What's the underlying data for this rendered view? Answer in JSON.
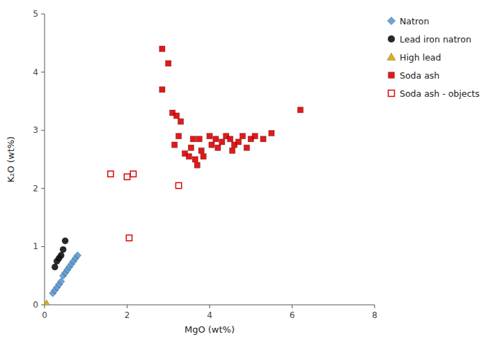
{
  "chart_data": {
    "type": "scatter",
    "xlabel": "MgO (wt%)",
    "ylabel": "K₂O (wt%)",
    "xlim": [
      0,
      8
    ],
    "ylim": [
      0,
      5
    ],
    "xticks": [
      0,
      2,
      4,
      6,
      8
    ],
    "yticks": [
      0,
      1,
      2,
      3,
      4,
      5
    ],
    "legend": "right",
    "series": [
      {
        "name": "Natron",
        "color": "#5b9bd5",
        "marker": "diamond",
        "x": [
          0.2,
          0.25,
          0.3,
          0.35,
          0.4,
          0.45,
          0.5,
          0.55,
          0.6,
          0.65,
          0.7,
          0.75,
          0.8
        ],
        "values": [
          0.2,
          0.25,
          0.3,
          0.35,
          0.4,
          0.5,
          0.55,
          0.6,
          0.65,
          0.7,
          0.75,
          0.8,
          0.85
        ]
      },
      {
        "name": "Lead iron natron",
        "color": "#111111",
        "marker": "circle",
        "x": [
          0.25,
          0.3,
          0.35,
          0.4,
          0.45,
          0.5
        ],
        "values": [
          0.65,
          0.75,
          0.8,
          0.85,
          0.95,
          1.1
        ]
      },
      {
        "name": "High lead",
        "color": "#d4a800",
        "marker": "triangle",
        "x": [
          0.05
        ],
        "values": [
          0.02
        ]
      },
      {
        "name": "Soda ash",
        "color": "#dd0000",
        "marker": "square",
        "x": [
          2.85,
          3.0,
          2.85,
          3.1,
          3.2,
          3.15,
          3.25,
          3.3,
          3.4,
          3.5,
          3.55,
          3.6,
          3.65,
          3.7,
          3.75,
          3.8,
          3.85,
          4.0,
          4.05,
          4.15,
          4.2,
          4.3,
          4.4,
          4.5,
          4.55,
          4.6,
          4.7,
          4.8,
          4.9,
          5.0,
          5.1,
          5.3,
          5.5,
          6.2
        ],
        "values": [
          4.4,
          4.15,
          3.7,
          3.3,
          3.25,
          2.75,
          2.9,
          3.15,
          2.6,
          2.55,
          2.7,
          2.85,
          2.5,
          2.4,
          2.85,
          2.65,
          2.55,
          2.9,
          2.75,
          2.85,
          2.7,
          2.8,
          2.9,
          2.85,
          2.65,
          2.75,
          2.8,
          2.9,
          2.7,
          2.85,
          2.9,
          2.85,
          2.95,
          3.35
        ]
      },
      {
        "name": "Soda ash - objects",
        "color": "#dd0000",
        "marker": "open-square",
        "x": [
          1.6,
          2.0,
          2.15,
          2.05,
          3.25
        ],
        "values": [
          2.25,
          2.2,
          2.25,
          1.15,
          2.05
        ]
      }
    ]
  }
}
